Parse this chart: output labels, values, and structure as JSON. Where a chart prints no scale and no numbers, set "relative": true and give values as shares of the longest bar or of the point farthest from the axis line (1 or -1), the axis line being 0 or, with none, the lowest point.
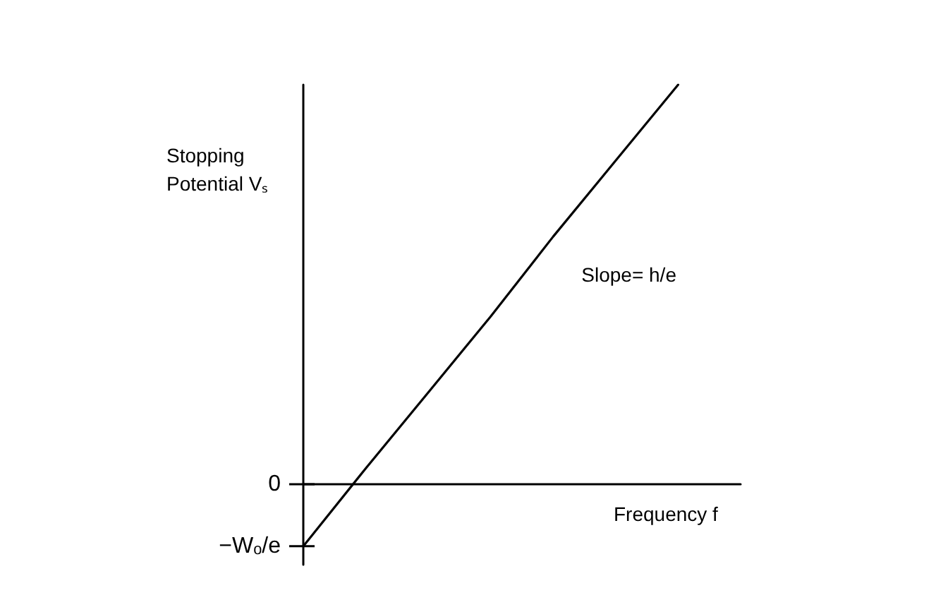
{
  "chart_data": {
    "type": "line",
    "relative": true,
    "xlabel": "Frequency f",
    "ylabel": "Stopping Potential Vₛ",
    "categories": [
      null,
      null,
      null,
      null,
      null,
      null,
      null,
      null
    ],
    "series": [
      {
        "color": "#000000",
        "values": [
          -0.155,
          0.04,
          0.23,
          0.42,
          0.62,
          0.81,
          1,
          null
        ]
      }
    ],
    "annotations": [
      "0",
      "−Wₒ/e",
      "Slope= h/e"
    ],
    "marker": "none",
    "line_style": "solid"
  }
}
